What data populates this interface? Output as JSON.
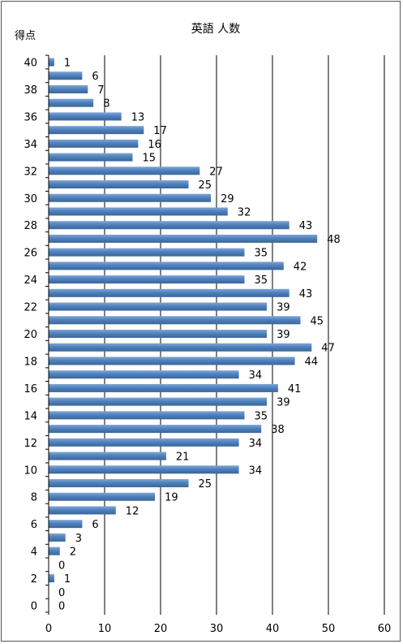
{
  "chart_data": {
    "type": "bar",
    "orientation": "horizontal",
    "title": "英語 人数",
    "ylabel": "得点",
    "xlabel": "",
    "xlim": [
      0,
      60
    ],
    "x_ticks": [
      0,
      10,
      20,
      30,
      40,
      50,
      60
    ],
    "y_ticks": [
      40,
      38,
      36,
      34,
      32,
      30,
      28,
      26,
      24,
      22,
      20,
      18,
      16,
      14,
      12,
      10,
      8,
      6,
      4,
      2,
      0
    ],
    "categories": [
      40,
      39,
      38,
      37,
      36,
      35,
      34,
      33,
      32,
      31,
      30,
      29,
      28,
      27,
      26,
      25,
      24,
      23,
      22,
      21,
      20,
      19,
      18,
      17,
      16,
      15,
      14,
      13,
      12,
      11,
      10,
      9,
      8,
      7,
      6,
      5,
      4,
      3,
      2,
      1,
      0
    ],
    "values": [
      1,
      6,
      7,
      8,
      13,
      17,
      16,
      15,
      27,
      25,
      29,
      32,
      43,
      48,
      35,
      42,
      35,
      43,
      39,
      45,
      39,
      47,
      44,
      34,
      41,
      39,
      35,
      38,
      34,
      21,
      34,
      25,
      19,
      12,
      6,
      3,
      2,
      0,
      1,
      0,
      0
    ],
    "grid": "vertical",
    "legend": "none",
    "bar_color": "#4F81BD"
  }
}
